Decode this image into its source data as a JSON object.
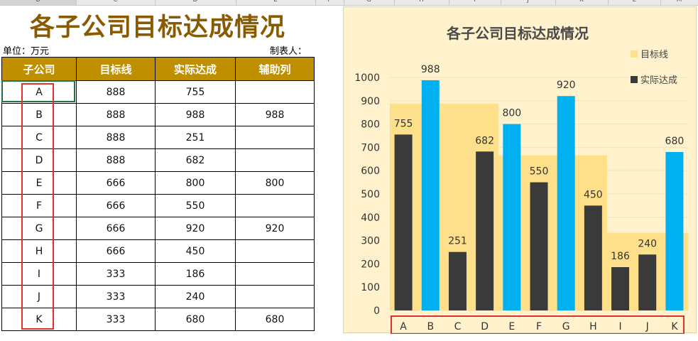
{
  "sheet": {
    "columns": [
      "B",
      "C",
      "D",
      "E",
      "F",
      "G",
      "H",
      "I",
      "J",
      "K",
      "L",
      "M"
    ]
  },
  "title": "各子公司目标达成情况",
  "unit_label": "单位：万元",
  "maker_label": "制表人：",
  "table": {
    "headers": [
      "子公司",
      "目标线",
      "实际达成",
      "辅助列"
    ],
    "rows": [
      [
        "A",
        "888",
        "755",
        ""
      ],
      [
        "B",
        "888",
        "988",
        "988"
      ],
      [
        "C",
        "888",
        "251",
        ""
      ],
      [
        "D",
        "888",
        "682",
        ""
      ],
      [
        "E",
        "666",
        "800",
        "800"
      ],
      [
        "F",
        "666",
        "550",
        ""
      ],
      [
        "G",
        "666",
        "920",
        "920"
      ],
      [
        "H",
        "666",
        "450",
        ""
      ],
      [
        "I",
        "333",
        "186",
        ""
      ],
      [
        "J",
        "333",
        "240",
        ""
      ],
      [
        "K",
        "333",
        "680",
        "680"
      ]
    ]
  },
  "chart_data": {
    "type": "bar",
    "title": "各子公司目标达成情况",
    "categories": [
      "A",
      "B",
      "C",
      "D",
      "E",
      "F",
      "G",
      "H",
      "I",
      "J",
      "K"
    ],
    "series": [
      {
        "name": "目标线",
        "values": [
          888,
          888,
          888,
          888,
          666,
          666,
          666,
          666,
          333,
          333,
          333
        ],
        "color": "#ffe08a"
      },
      {
        "name": "实际达成",
        "values": [
          755,
          988,
          251,
          682,
          800,
          550,
          920,
          450,
          186,
          240,
          680
        ],
        "color": "#3a3a3a",
        "highlight_color": "#00b0f0",
        "highlight_values": [
          null,
          988,
          null,
          null,
          800,
          null,
          920,
          null,
          null,
          null,
          680
        ]
      }
    ],
    "data_labels": [
      "755",
      "988",
      "251",
      "682",
      "800",
      "550",
      "920",
      "450",
      "186",
      "240",
      "680"
    ],
    "ylim": [
      0,
      1000
    ],
    "yticks": [
      "0",
      "100",
      "200",
      "300",
      "400",
      "500",
      "600",
      "700",
      "800",
      "900",
      "1000"
    ],
    "legend_position": "top-right",
    "grid": true
  }
}
